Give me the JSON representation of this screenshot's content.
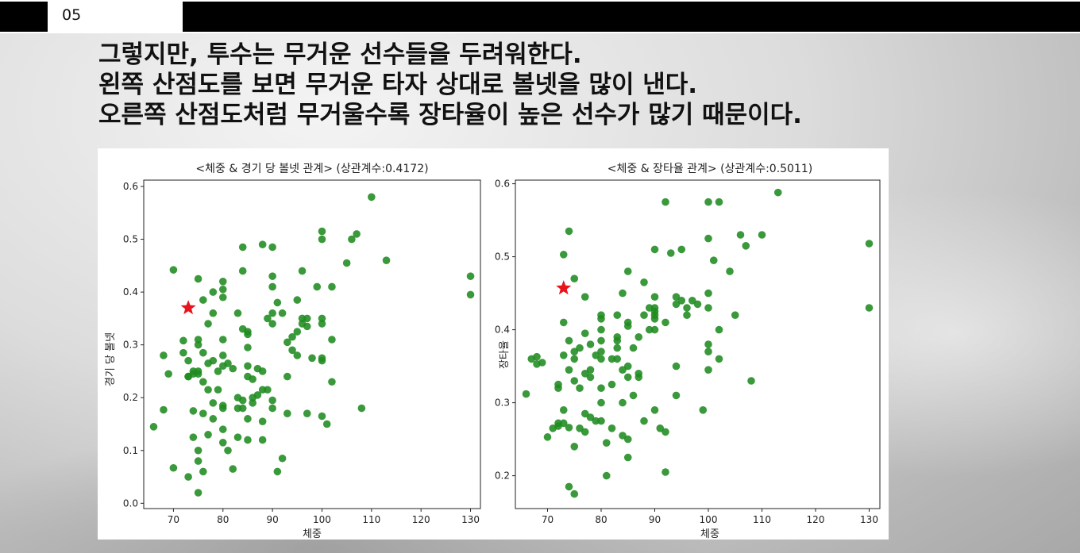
{
  "slide": {
    "number": "05"
  },
  "headline": {
    "line1": "그렇지만, 투수는 무거운 선수들을 두려워한다.",
    "line2": "왼쪽 산점도를 보면 무거운 타자 상대로 볼넷을 많이 낸다.",
    "line3": "오른쪽 산점도처럼 무거울수록 장타율이 높은 선수가 많기 때문이다."
  },
  "colors": {
    "point": "#1f8b1f",
    "highlight": "#e8141b"
  },
  "chart_data": [
    {
      "type": "scatter",
      "title": "<체중 & 경기 당 볼넷 관계>  (상관계수:0.4172)",
      "xlabel": "체중",
      "ylabel": "경기 당 볼넷",
      "xlim": [
        64,
        132
      ],
      "ylim": [
        -0.01,
        0.612
      ],
      "xticks": [
        70,
        80,
        90,
        100,
        110,
        120,
        130
      ],
      "yticks": [
        0.0,
        0.1,
        0.2,
        0.3,
        0.4,
        0.5,
        0.6
      ],
      "grid": false,
      "highlight": {
        "x": 73,
        "y": 0.37,
        "marker": "star"
      },
      "points": [
        [
          66,
          0.145
        ],
        [
          68,
          0.28
        ],
        [
          68,
          0.177
        ],
        [
          69,
          0.245
        ],
        [
          70,
          0.442
        ],
        [
          70,
          0.067
        ],
        [
          72,
          0.308
        ],
        [
          72,
          0.285
        ],
        [
          73,
          0.05
        ],
        [
          73,
          0.24
        ],
        [
          73,
          0.24
        ],
        [
          73,
          0.27
        ],
        [
          74,
          0.125
        ],
        [
          74,
          0.175
        ],
        [
          74,
          0.245
        ],
        [
          74,
          0.25
        ],
        [
          75,
          0.425
        ],
        [
          75,
          0.31
        ],
        [
          75,
          0.3
        ],
        [
          75,
          0.25
        ],
        [
          75,
          0.245
        ],
        [
          75,
          0.1
        ],
        [
          75,
          0.08
        ],
        [
          75,
          0.02
        ],
        [
          76,
          0.385
        ],
        [
          76,
          0.285
        ],
        [
          76,
          0.23
        ],
        [
          76,
          0.17
        ],
        [
          76,
          0.06
        ],
        [
          77,
          0.34
        ],
        [
          77,
          0.265
        ],
        [
          77,
          0.215
        ],
        [
          77,
          0.13
        ],
        [
          78,
          0.4
        ],
        [
          78,
          0.36
        ],
        [
          78,
          0.27
        ],
        [
          78,
          0.16
        ],
        [
          78,
          0.19
        ],
        [
          79,
          0.25
        ],
        [
          79,
          0.215
        ],
        [
          80,
          0.42
        ],
        [
          80,
          0.405
        ],
        [
          80,
          0.39
        ],
        [
          80,
          0.31
        ],
        [
          80,
          0.28
        ],
        [
          80,
          0.26
        ],
        [
          80,
          0.185
        ],
        [
          80,
          0.18
        ],
        [
          80,
          0.14
        ],
        [
          80,
          0.115
        ],
        [
          81,
          0.265
        ],
        [
          81,
          0.1
        ],
        [
          82,
          0.255
        ],
        [
          82,
          0.065
        ],
        [
          83,
          0.36
        ],
        [
          83,
          0.2
        ],
        [
          83,
          0.18
        ],
        [
          83,
          0.125
        ],
        [
          84,
          0.485
        ],
        [
          84,
          0.44
        ],
        [
          84,
          0.33
        ],
        [
          84,
          0.195
        ],
        [
          84,
          0.18
        ],
        [
          85,
          0.325
        ],
        [
          85,
          0.32
        ],
        [
          85,
          0.295
        ],
        [
          85,
          0.26
        ],
        [
          85,
          0.24
        ],
        [
          85,
          0.16
        ],
        [
          85,
          0.12
        ],
        [
          86,
          0.235
        ],
        [
          86,
          0.2
        ],
        [
          86,
          0.19
        ],
        [
          87,
          0.255
        ],
        [
          87,
          0.205
        ],
        [
          88,
          0.49
        ],
        [
          88,
          0.25
        ],
        [
          88,
          0.215
        ],
        [
          88,
          0.155
        ],
        [
          88,
          0.12
        ],
        [
          89,
          0.35
        ],
        [
          89,
          0.215
        ],
        [
          90,
          0.485
        ],
        [
          90,
          0.43
        ],
        [
          90,
          0.41
        ],
        [
          90,
          0.36
        ],
        [
          90,
          0.34
        ],
        [
          90,
          0.195
        ],
        [
          90,
          0.18
        ],
        [
          91,
          0.38
        ],
        [
          91,
          0.06
        ],
        [
          92,
          0.36
        ],
        [
          92,
          0.085
        ],
        [
          93,
          0.305
        ],
        [
          93,
          0.24
        ],
        [
          93,
          0.17
        ],
        [
          94,
          0.29
        ],
        [
          94,
          0.315
        ],
        [
          95,
          0.385
        ],
        [
          95,
          0.325
        ],
        [
          95,
          0.28
        ],
        [
          96,
          0.44
        ],
        [
          96,
          0.35
        ],
        [
          96,
          0.34
        ],
        [
          97,
          0.35
        ],
        [
          97,
          0.335
        ],
        [
          97,
          0.17
        ],
        [
          98,
          0.275
        ],
        [
          99,
          0.41
        ],
        [
          100,
          0.515
        ],
        [
          100,
          0.5
        ],
        [
          100,
          0.35
        ],
        [
          100,
          0.34
        ],
        [
          100,
          0.275
        ],
        [
          100,
          0.27
        ],
        [
          100,
          0.165
        ],
        [
          101,
          0.15
        ],
        [
          102,
          0.41
        ],
        [
          102,
          0.31
        ],
        [
          102,
          0.23
        ],
        [
          105,
          0.455
        ],
        [
          106,
          0.5
        ],
        [
          107,
          0.51
        ],
        [
          108,
          0.18
        ],
        [
          110,
          0.58
        ],
        [
          113,
          0.46
        ],
        [
          130,
          0.43
        ],
        [
          130,
          0.395
        ]
      ]
    },
    {
      "type": "scatter",
      "title": "<체중 & 장타율 관계>  (상관계수:0.5011)",
      "xlabel": "체중",
      "ylabel": "장타율",
      "xlim": [
        64,
        132
      ],
      "ylim": [
        0.155,
        0.605
      ],
      "xticks": [
        70,
        80,
        90,
        100,
        110,
        120,
        130
      ],
      "yticks": [
        0.2,
        0.3,
        0.4,
        0.5,
        0.6
      ],
      "grid": false,
      "highlight": {
        "x": 73,
        "y": 0.457,
        "marker": "star"
      },
      "points": [
        [
          66,
          0.312
        ],
        [
          67,
          0.36
        ],
        [
          68,
          0.363
        ],
        [
          68,
          0.353
        ],
        [
          69,
          0.355
        ],
        [
          70,
          0.253
        ],
        [
          71,
          0.265
        ],
        [
          72,
          0.325
        ],
        [
          72,
          0.32
        ],
        [
          72,
          0.268
        ],
        [
          72,
          0.272
        ],
        [
          73,
          0.41
        ],
        [
          73,
          0.503
        ],
        [
          73,
          0.365
        ],
        [
          73,
          0.29
        ],
        [
          73,
          0.272
        ],
        [
          74,
          0.535
        ],
        [
          74,
          0.385
        ],
        [
          74,
          0.345
        ],
        [
          74,
          0.266
        ],
        [
          74,
          0.185
        ],
        [
          75,
          0.47
        ],
        [
          75,
          0.37
        ],
        [
          75,
          0.36
        ],
        [
          75,
          0.33
        ],
        [
          75,
          0.24
        ],
        [
          75,
          0.175
        ],
        [
          76,
          0.375
        ],
        [
          76,
          0.32
        ],
        [
          76,
          0.265
        ],
        [
          77,
          0.445
        ],
        [
          77,
          0.395
        ],
        [
          77,
          0.34
        ],
        [
          77,
          0.285
        ],
        [
          77,
          0.26
        ],
        [
          78,
          0.38
        ],
        [
          78,
          0.345
        ],
        [
          78,
          0.335
        ],
        [
          78,
          0.28
        ],
        [
          79,
          0.365
        ],
        [
          79,
          0.275
        ],
        [
          80,
          0.42
        ],
        [
          80,
          0.415
        ],
        [
          80,
          0.4
        ],
        [
          80,
          0.385
        ],
        [
          80,
          0.37
        ],
        [
          80,
          0.36
        ],
        [
          80,
          0.32
        ],
        [
          80,
          0.3
        ],
        [
          80,
          0.275
        ],
        [
          81,
          0.2
        ],
        [
          81,
          0.245
        ],
        [
          82,
          0.36
        ],
        [
          82,
          0.325
        ],
        [
          82,
          0.265
        ],
        [
          83,
          0.42
        ],
        [
          83,
          0.39
        ],
        [
          83,
          0.385
        ],
        [
          83,
          0.375
        ],
        [
          83,
          0.36
        ],
        [
          84,
          0.45
        ],
        [
          84,
          0.345
        ],
        [
          84,
          0.3
        ],
        [
          84,
          0.255
        ],
        [
          85,
          0.48
        ],
        [
          85,
          0.41
        ],
        [
          85,
          0.405
        ],
        [
          85,
          0.35
        ],
        [
          85,
          0.335
        ],
        [
          85,
          0.225
        ],
        [
          85,
          0.25
        ],
        [
          86,
          0.375
        ],
        [
          86,
          0.31
        ],
        [
          87,
          0.39
        ],
        [
          87,
          0.34
        ],
        [
          87,
          0.335
        ],
        [
          88,
          0.465
        ],
        [
          88,
          0.42
        ],
        [
          88,
          0.275
        ],
        [
          89,
          0.43
        ],
        [
          89,
          0.4
        ],
        [
          90,
          0.51
        ],
        [
          90,
          0.445
        ],
        [
          90,
          0.43
        ],
        [
          90,
          0.425
        ],
        [
          90,
          0.42
        ],
        [
          90,
          0.415
        ],
        [
          90,
          0.4
        ],
        [
          90,
          0.29
        ],
        [
          91,
          0.265
        ],
        [
          92,
          0.575
        ],
        [
          92,
          0.41
        ],
        [
          92,
          0.26
        ],
        [
          92,
          0.205
        ],
        [
          93,
          0.505
        ],
        [
          94,
          0.445
        ],
        [
          94,
          0.435
        ],
        [
          94,
          0.35
        ],
        [
          94,
          0.31
        ],
        [
          95,
          0.51
        ],
        [
          95,
          0.44
        ],
        [
          96,
          0.43
        ],
        [
          96,
          0.42
        ],
        [
          97,
          0.44
        ],
        [
          98,
          0.435
        ],
        [
          99,
          0.29
        ],
        [
          100,
          0.575
        ],
        [
          100,
          0.525
        ],
        [
          100,
          0.45
        ],
        [
          100,
          0.43
        ],
        [
          100,
          0.38
        ],
        [
          100,
          0.37
        ],
        [
          100,
          0.345
        ],
        [
          101,
          0.495
        ],
        [
          102,
          0.575
        ],
        [
          102,
          0.4
        ],
        [
          102,
          0.36
        ],
        [
          104,
          0.48
        ],
        [
          105,
          0.42
        ],
        [
          106,
          0.53
        ],
        [
          107,
          0.515
        ],
        [
          108,
          0.33
        ],
        [
          110,
          0.53
        ],
        [
          113,
          0.588
        ],
        [
          130,
          0.518
        ],
        [
          130,
          0.43
        ]
      ]
    }
  ]
}
